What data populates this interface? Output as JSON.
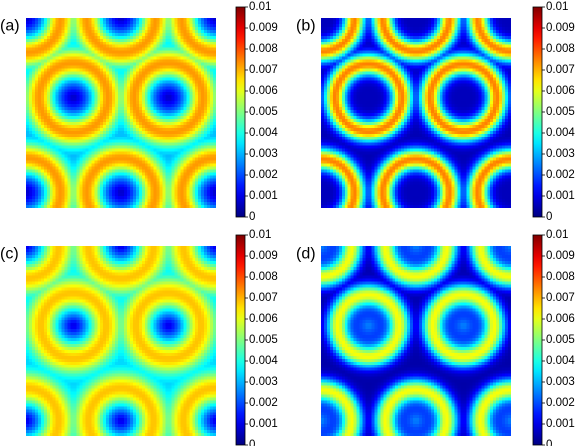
{
  "chart_data": [
    {
      "type": "heatmap",
      "panel_label": "(a)",
      "colorbar": {
        "min": 0,
        "max": 0.01,
        "ticks": [
          "0.01",
          "0.009",
          "0.008",
          "0.007",
          "0.006",
          "0.005",
          "0.004",
          "0.003",
          "0.002",
          "0.001",
          "0"
        ]
      },
      "pattern": {
        "background_value": 0.0028,
        "ring_peak": 0.0078,
        "center_value": 0.0006,
        "ring_radius": 0.19,
        "ring_width": 0.082
      }
    },
    {
      "type": "heatmap",
      "panel_label": "(b)",
      "colorbar": {
        "min": 0,
        "max": 0.01,
        "ticks": [
          "0.01",
          "0.009",
          "0.008",
          "0.007",
          "0.006",
          "0.005",
          "0.004",
          "0.003",
          "0.002",
          "0.001",
          "0"
        ]
      },
      "pattern": {
        "background_value": 0.0005,
        "ring_peak": 0.0082,
        "center_value": 0.0006,
        "ring_radius": 0.18,
        "ring_width": 0.058
      }
    },
    {
      "type": "heatmap",
      "panel_label": "(c)",
      "colorbar": {
        "min": 0,
        "max": 0.01,
        "ticks": [
          "0.01",
          "0.009",
          "0.008",
          "0.007",
          "0.006",
          "0.005",
          "0.004",
          "0.003",
          "0.002",
          "0.001",
          "0"
        ]
      },
      "pattern": {
        "background_value": 0.0031,
        "ring_peak": 0.0072,
        "center_value": 0.0008,
        "ring_radius": 0.18,
        "ring_width": 0.09
      }
    },
    {
      "type": "heatmap",
      "panel_label": "(d)",
      "colorbar": {
        "min": 0,
        "max": 0.01,
        "ticks": [
          "0.01",
          "0.009",
          "0.008",
          "0.007",
          "0.006",
          "0.005",
          "0.004",
          "0.003",
          "0.002",
          "0.001",
          "0"
        ]
      },
      "pattern": {
        "background_value": 0.0004,
        "ring_peak": 0.0066,
        "center_value": 0.0026,
        "ring_radius": 0.165,
        "ring_width": 0.06
      }
    }
  ]
}
